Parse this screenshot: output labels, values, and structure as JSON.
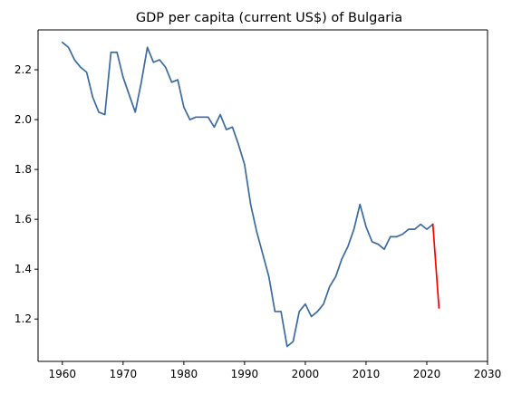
{
  "chart_data": {
    "type": "line",
    "title": "GDP per capita (current US$) of Bulgaria",
    "xlabel": "",
    "ylabel": "",
    "xlim": [
      1956,
      2030
    ],
    "ylim": [
      1.03,
      2.36
    ],
    "x_ticks": [
      1960,
      1970,
      1980,
      1990,
      2000,
      2010,
      2020,
      2030
    ],
    "y_ticks": [
      1.2,
      1.4,
      1.6,
      1.8,
      2.0,
      2.2
    ],
    "grid": false,
    "legend": "none",
    "series": [
      {
        "color": "#3a6aa0",
        "x": [
          1960,
          1961,
          1962,
          1963,
          1964,
          1965,
          1966,
          1967,
          1968,
          1969,
          1970,
          1971,
          1972,
          1973,
          1974,
          1975,
          1976,
          1977,
          1978,
          1979,
          1980,
          1981,
          1982,
          1983,
          1984,
          1985,
          1986,
          1987,
          1988,
          1989,
          1990,
          1991,
          1992,
          1993,
          1994,
          1995,
          1996,
          1997,
          1998,
          1999,
          2000,
          2001,
          2002,
          2003,
          2004,
          2005,
          2006,
          2007,
          2008,
          2009,
          2010,
          2011,
          2012,
          2013,
          2014,
          2015,
          2016,
          2017,
          2018,
          2019,
          2020,
          2021
        ],
        "y": [
          2.31,
          2.29,
          2.24,
          2.21,
          2.19,
          2.09,
          2.03,
          2.02,
          2.27,
          2.27,
          2.17,
          2.1,
          2.03,
          2.15,
          2.29,
          2.23,
          2.24,
          2.21,
          2.15,
          2.16,
          2.05,
          2.0,
          2.01,
          2.01,
          2.01,
          1.97,
          2.02,
          1.96,
          1.97,
          1.9,
          1.82,
          1.66,
          1.55,
          1.46,
          1.37,
          1.23,
          1.23,
          1.09,
          1.11,
          1.23,
          1.26,
          1.21,
          1.23,
          1.26,
          1.33,
          1.37,
          1.44,
          1.49,
          1.56,
          1.66,
          1.57,
          1.51,
          1.5,
          1.48,
          1.53,
          1.53,
          1.54,
          1.56,
          1.56,
          1.58,
          1.56,
          1.58
        ]
      },
      {
        "color": "#ff0000",
        "x": [
          2021,
          2022
        ],
        "y": [
          1.58,
          1.245
        ]
      }
    ]
  }
}
